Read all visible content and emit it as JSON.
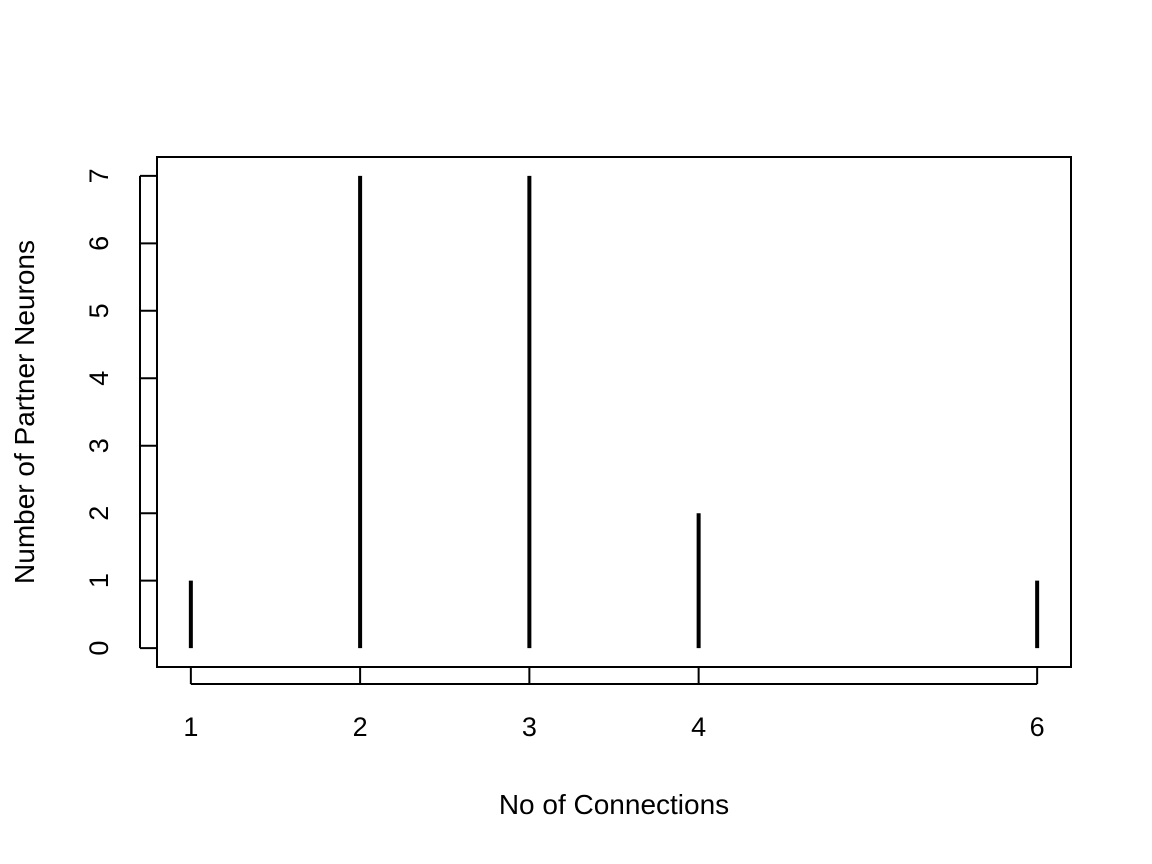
{
  "chart_data": {
    "type": "bar",
    "style": "histogram-spikes",
    "x": [
      1,
      2,
      3,
      4,
      6
    ],
    "values": [
      1,
      7,
      7,
      2,
      1
    ],
    "xlabel": "No of Connections",
    "ylabel": "Number of Partner Neurons",
    "x_ticks": [
      1,
      2,
      3,
      4,
      6
    ],
    "y_ticks": [
      0,
      1,
      2,
      3,
      4,
      5,
      6,
      7
    ],
    "xlim": [
      0.8,
      6.2
    ],
    "ylim": [
      -0.28,
      7.28
    ],
    "grid": false,
    "legend": "none",
    "colors": {
      "bars": "#000000",
      "axes": "#000000",
      "background": "#ffffff"
    }
  }
}
